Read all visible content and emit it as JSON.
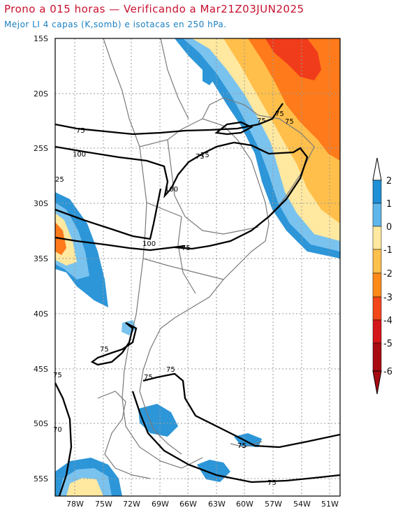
{
  "header": {
    "title": "Prono a 015 horas — Verificando a Mar21Z03JUN2025",
    "subtitle": "Mejor LI 4 capas (K,somb) e isotacas en 250 hPa."
  },
  "map": {
    "lat_labels": [
      "15S",
      "20S",
      "25S",
      "30S",
      "35S",
      "40S",
      "45S",
      "50S",
      "55S"
    ],
    "lon_labels": [
      "78W",
      "75W",
      "72W",
      "69W",
      "66W",
      "63W",
      "60W",
      "57W",
      "54W",
      "51W"
    ],
    "isotach_labels": [
      "75",
      "75",
      "75",
      "75",
      "75",
      "100",
      "100",
      "100",
      "75",
      "75",
      "75",
      "75",
      "75",
      "75",
      "75",
      "75",
      "25",
      "75",
      "70"
    ]
  },
  "colorbar": {
    "labels": [
      "2",
      "1",
      "0",
      "-1",
      "-2",
      "-3",
      "-4",
      "-5",
      "-6"
    ],
    "colors": [
      "#1f8fd6",
      "#5fb6ea",
      "#ffffff",
      "#ffe9a0",
      "#ffc04d",
      "#ff8a1a",
      "#f2461a",
      "#d4151a",
      "#a80a12"
    ]
  },
  "colors": {
    "strong_pos": "#2d96d8",
    "weak_pos": "#7ac3ef",
    "weak_neg": "#ffe8a0",
    "mid_neg": "#ffbf4a",
    "strong_neg": "#ff7a1a",
    "very_neg": "#f03c1a",
    "isotach": "#000000",
    "border": "#7a7a7a"
  }
}
